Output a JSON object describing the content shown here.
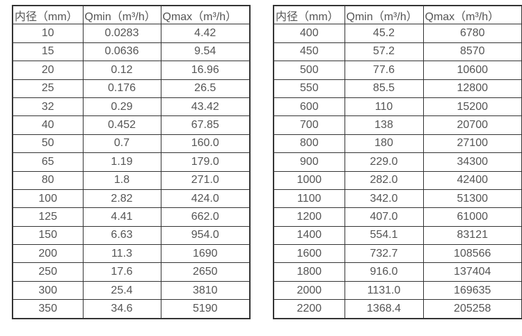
{
  "page": {
    "background_color": "#ffffff",
    "text_color": "#555555",
    "border_color": "#333333"
  },
  "tables": [
    {
      "name": "flow-rate-table-small-diameters",
      "headers": [
        "内径（mm）",
        "Qmin（m³/h）",
        "Qmax（m³/h）"
      ],
      "rows": [
        [
          "10",
          "0.0283",
          "4.42"
        ],
        [
          "15",
          "0.0636",
          "9.54"
        ],
        [
          "20",
          "0.12",
          "16.96"
        ],
        [
          "25",
          "0.176",
          "26.5"
        ],
        [
          "32",
          "0.29",
          "43.42"
        ],
        [
          "40",
          "0.452",
          "67.85"
        ],
        [
          "50",
          "0.7",
          "160.0"
        ],
        [
          "65",
          "1.19",
          "179.0"
        ],
        [
          "80",
          "1.8",
          "271.0"
        ],
        [
          "100",
          "2.82",
          "424.0"
        ],
        [
          "125",
          "4.41",
          "662.0"
        ],
        [
          "150",
          "6.63",
          "954.0"
        ],
        [
          "200",
          "11.3",
          "1690"
        ],
        [
          "250",
          "17.6",
          "2650"
        ],
        [
          "300",
          "25.4",
          "3810"
        ],
        [
          "350",
          "34.6",
          "5190"
        ]
      ]
    },
    {
      "name": "flow-rate-table-large-diameters",
      "headers": [
        "内径（mm）",
        "Qmin（m³/h）",
        "Qmax（m³/h）"
      ],
      "rows": [
        [
          "400",
          "45.2",
          "6780"
        ],
        [
          "450",
          "57.2",
          "8570"
        ],
        [
          "500",
          "77.6",
          "10600"
        ],
        [
          "550",
          "85.5",
          "12800"
        ],
        [
          "600",
          "110",
          "15200"
        ],
        [
          "700",
          "138",
          "20700"
        ],
        [
          "800",
          "180",
          "27100"
        ],
        [
          "900",
          "229.0",
          "34300"
        ],
        [
          "1000",
          "282.0",
          "42400"
        ],
        [
          "1100",
          "342.0",
          "51300"
        ],
        [
          "1200",
          "407.0",
          "61000"
        ],
        [
          "1400",
          "554.1",
          "83121"
        ],
        [
          "1600",
          "732.7",
          "108566"
        ],
        [
          "1800",
          "916.0",
          "137404"
        ],
        [
          "2000",
          "1131.0",
          "169635"
        ],
        [
          "2200",
          "1368.4",
          "205258"
        ]
      ]
    }
  ]
}
